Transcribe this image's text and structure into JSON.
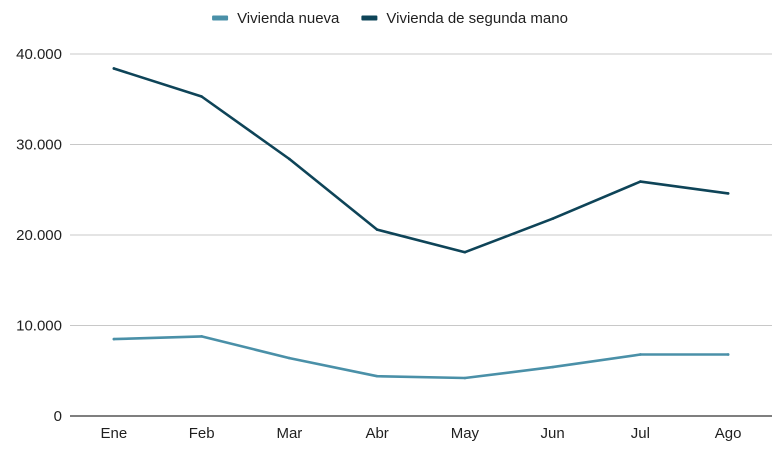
{
  "chart_data": {
    "type": "line",
    "title": "",
    "xlabel": "",
    "ylabel": "",
    "categories": [
      "Ene",
      "Feb",
      "Mar",
      "Abr",
      "May",
      "Jun",
      "Jul",
      "Ago"
    ],
    "ylim": [
      0,
      40000
    ],
    "yticks": [
      0,
      10000,
      20000,
      30000,
      40000
    ],
    "ytick_labels": [
      "0",
      "10.000",
      "20.000",
      "30.000",
      "40.000"
    ],
    "grid": true,
    "legend_position": "top-center",
    "series": [
      {
        "name": "Vivienda nueva",
        "color": "#4a90a8",
        "values": [
          8500,
          8800,
          6400,
          4400,
          4200,
          5400,
          6800,
          6800
        ]
      },
      {
        "name": "Vivienda de segunda mano",
        "color": "#0e4458",
        "values": [
          38400,
          35300,
          28400,
          20600,
          18100,
          21800,
          25900,
          24600
        ]
      }
    ]
  }
}
